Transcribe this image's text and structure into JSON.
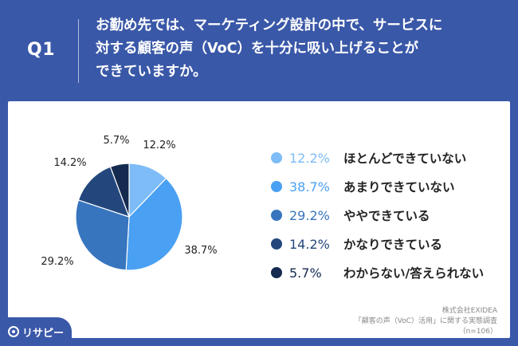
{
  "header": {
    "q_number": "Q1",
    "question_lines": [
      "お勤め先では、マーケティング設計の中で、サービスに",
      "対する顧客の声（VoC）を十分に吸い上げることが",
      "できていますか。"
    ]
  },
  "chart_data": {
    "type": "pie",
    "title": "",
    "slices": [
      {
        "label": "ほとんどできていない",
        "value": 12.2,
        "value_text": "12.2%",
        "color": "#7dbcf7"
      },
      {
        "label": "あまりできていない",
        "value": 38.7,
        "value_text": "38.7%",
        "color": "#4aa0f2"
      },
      {
        "label": "ややできている",
        "value": 29.2,
        "value_text": "29.2%",
        "color": "#3775bf"
      },
      {
        "label": "かなりできている",
        "value": 14.2,
        "value_text": "14.2%",
        "color": "#23477d"
      },
      {
        "label": "わからない/答えられない",
        "value": 5.7,
        "value_text": "5.7%",
        "color": "#152a4f"
      }
    ],
    "legend_position": "right"
  },
  "source": {
    "company": "株式会社EXIDEA",
    "survey": "「顧客の声（VoC）活用」に関する実態調査",
    "sample": "（n=106）"
  },
  "logo": {
    "text": "リサピー",
    "icon": "risapi-logo-icon"
  }
}
